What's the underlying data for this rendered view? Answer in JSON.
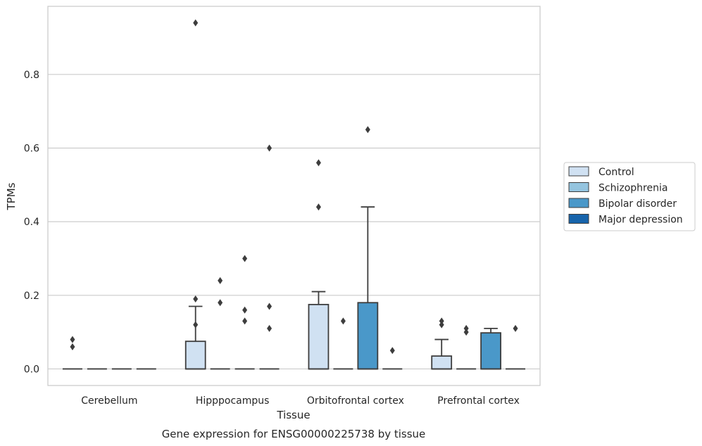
{
  "chart_data": {
    "type": "box",
    "title": "",
    "caption": "Gene expression for ENSG00000225738 by tissue",
    "xlabel": "Tissue",
    "ylabel": "TPMs",
    "ylim": [
      -0.045,
      0.985
    ],
    "yticks": [
      0.0,
      0.2,
      0.4,
      0.6,
      0.8
    ],
    "ytick_labels": [
      "0.0",
      "0.2",
      "0.4",
      "0.6",
      "0.8"
    ],
    "grid": "horizontal",
    "legend_position": "right",
    "categories": [
      "Cerebellum",
      "Hipppocampus",
      "Orbitofrontal cortex",
      "Prefrontal cortex"
    ],
    "series": [
      {
        "name": "Control",
        "color": "#d0e1f2",
        "boxes": [
          {
            "q1": 0,
            "median": 0,
            "q3": 0,
            "whisker_low": 0,
            "whisker_high": 0,
            "outliers": [
              0.08,
              0.06
            ]
          },
          {
            "q1": 0,
            "median": 0,
            "q3": 0.075,
            "whisker_low": 0,
            "whisker_high": 0.17,
            "outliers": [
              0.94,
              0.19,
              0.12
            ]
          },
          {
            "q1": 0,
            "median": 0,
            "q3": 0.175,
            "whisker_low": 0,
            "whisker_high": 0.21,
            "outliers": [
              0.56,
              0.44
            ]
          },
          {
            "q1": 0,
            "median": 0,
            "q3": 0.035,
            "whisker_low": 0,
            "whisker_high": 0.08,
            "outliers": [
              0.13,
              0.12
            ]
          }
        ]
      },
      {
        "name": "Schizophrenia",
        "color": "#94c4df",
        "boxes": [
          {
            "q1": 0,
            "median": 0,
            "q3": 0,
            "whisker_low": 0,
            "whisker_high": 0,
            "outliers": []
          },
          {
            "q1": 0,
            "median": 0,
            "q3": 0,
            "whisker_low": 0,
            "whisker_high": 0,
            "outliers": [
              0.24,
              0.18
            ]
          },
          {
            "q1": 0,
            "median": 0,
            "q3": 0,
            "whisker_low": 0,
            "whisker_high": 0,
            "outliers": [
              0.13
            ]
          },
          {
            "q1": 0,
            "median": 0,
            "q3": 0,
            "whisker_low": 0,
            "whisker_high": 0,
            "outliers": [
              0.11,
              0.1
            ]
          }
        ]
      },
      {
        "name": "Bipolar disorder",
        "color": "#4a98c9",
        "boxes": [
          {
            "q1": 0,
            "median": 0,
            "q3": 0,
            "whisker_low": 0,
            "whisker_high": 0,
            "outliers": []
          },
          {
            "q1": 0,
            "median": 0,
            "q3": 0,
            "whisker_low": 0,
            "whisker_high": 0,
            "outliers": [
              0.3,
              0.16,
              0.13
            ]
          },
          {
            "q1": 0,
            "median": 0,
            "q3": 0.18,
            "whisker_low": 0,
            "whisker_high": 0.44,
            "outliers": [
              0.65
            ]
          },
          {
            "q1": 0,
            "median": 0,
            "q3": 0.098,
            "whisker_low": 0,
            "whisker_high": 0.11,
            "outliers": []
          }
        ]
      },
      {
        "name": "Major depression",
        "color": "#1764ab",
        "boxes": [
          {
            "q1": 0,
            "median": 0,
            "q3": 0,
            "whisker_low": 0,
            "whisker_high": 0,
            "outliers": []
          },
          {
            "q1": 0,
            "median": 0,
            "q3": 0,
            "whisker_low": 0,
            "whisker_high": 0,
            "outliers": [
              0.6,
              0.17,
              0.11
            ]
          },
          {
            "q1": 0,
            "median": 0,
            "q3": 0,
            "whisker_low": 0,
            "whisker_high": 0,
            "outliers": [
              0.05
            ]
          },
          {
            "q1": 0,
            "median": 0,
            "q3": 0,
            "whisker_low": 0,
            "whisker_high": 0,
            "outliers": [
              0.11
            ]
          }
        ]
      }
    ]
  }
}
